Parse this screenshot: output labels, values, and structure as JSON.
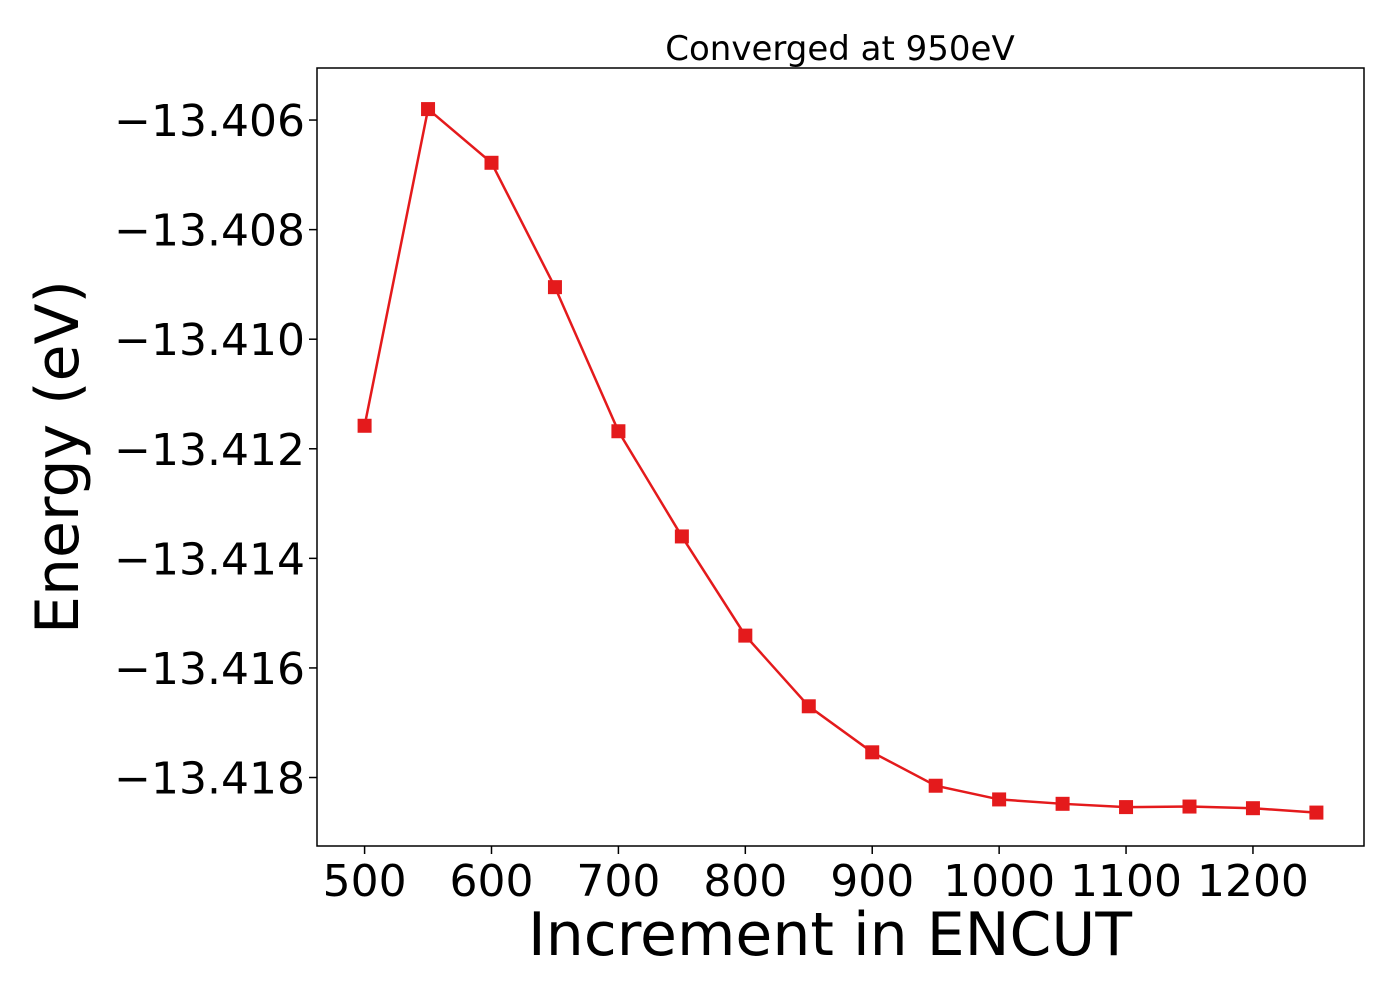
{
  "chart_data": {
    "type": "line",
    "title": "Converged at 950eV",
    "xlabel": "Increment in ENCUT",
    "ylabel": "Energy (eV)",
    "xlim": [
      462.5,
      1287.5
    ],
    "ylim": [
      -13.41925,
      -13.40505
    ],
    "xticks": [
      500,
      600,
      700,
      800,
      900,
      1000,
      1100,
      1200
    ],
    "xtick_labels": [
      "500",
      "600",
      "700",
      "800",
      "900",
      "1000",
      "1100",
      "1200"
    ],
    "yticks": [
      -13.406,
      -13.408,
      -13.41,
      -13.412,
      -13.414,
      -13.416,
      -13.418
    ],
    "ytick_labels": [
      "−13.406",
      "−13.408",
      "−13.410",
      "−13.412",
      "−13.414",
      "−13.416",
      "−13.418"
    ],
    "grid": false,
    "series": [
      {
        "color": "#e41a1c",
        "marker": "square",
        "x": [
          500,
          550,
          600,
          650,
          700,
          750,
          800,
          850,
          900,
          950,
          1000,
          1050,
          1100,
          1150,
          1200,
          1250
        ],
        "y": [
          -13.41158,
          -13.4058,
          -13.40678,
          -13.40905,
          -13.41168,
          -13.4136,
          -13.41541,
          -13.4167,
          -13.41754,
          -13.41815,
          -13.4184,
          -13.41848,
          -13.41854,
          -13.41853,
          -13.41856,
          -13.41864
        ]
      }
    ]
  }
}
